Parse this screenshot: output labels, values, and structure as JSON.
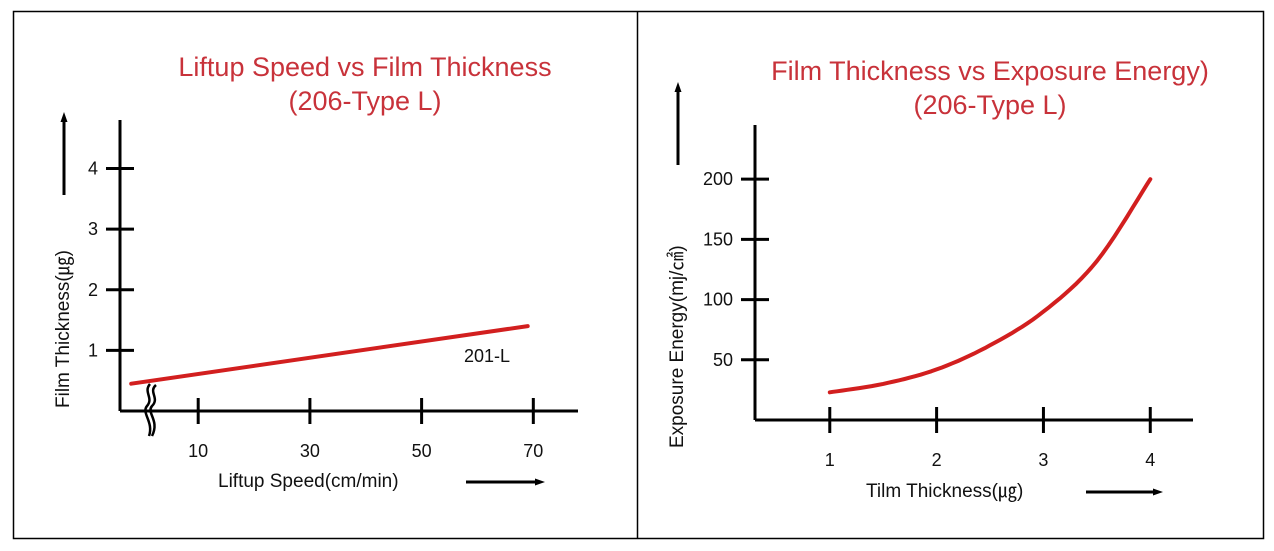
{
  "colors": {
    "title": "#c8323a",
    "series": "#d21f1f",
    "axis": "#000000",
    "border": "#000000"
  },
  "chart_data": [
    {
      "type": "line",
      "title": [
        "Liftup Speed vs Film Thickness",
        "(206-Type L)"
      ],
      "xlabel": "Liftup Speed(cm/min)",
      "ylabel": "Film Thickness(㎍)",
      "xlim": [
        -4,
        78
      ],
      "ylim": [
        0,
        4.8
      ],
      "x_axis_break": true,
      "x_ticks": [
        10,
        30,
        50,
        70
      ],
      "x_tick_labels": [
        "10",
        "30",
        "50",
        "70"
      ],
      "y_ticks": [
        1,
        2,
        3,
        4
      ],
      "y_tick_labels": [
        "1",
        "2",
        "3",
        "4"
      ],
      "grid": false,
      "series": [
        {
          "name": "201-L",
          "x": [
            -2,
            69
          ],
          "y": [
            0.45,
            1.4
          ]
        }
      ]
    },
    {
      "type": "line",
      "title": [
        "Film Thickness vs Exposure Energy)",
        "(206-Type L)"
      ],
      "xlabel": "Tilm Thickness(㎍)",
      "ylabel": "Exposure Energy(mj/㎠)",
      "xlim": [
        0.3,
        4.4
      ],
      "ylim": [
        0,
        245
      ],
      "x_ticks": [
        1,
        2,
        3,
        4
      ],
      "x_tick_labels": [
        "1",
        "2",
        "3",
        "4"
      ],
      "y_ticks": [
        50,
        100,
        150,
        200
      ],
      "y_tick_labels": [
        "50",
        "100",
        "150",
        "200"
      ],
      "grid": false,
      "series": [
        {
          "x": [
            1,
            1.5,
            2,
            2.5,
            3,
            3.5,
            4
          ],
          "y": [
            23,
            30,
            42,
            62,
            90,
            132,
            200
          ]
        }
      ]
    }
  ]
}
